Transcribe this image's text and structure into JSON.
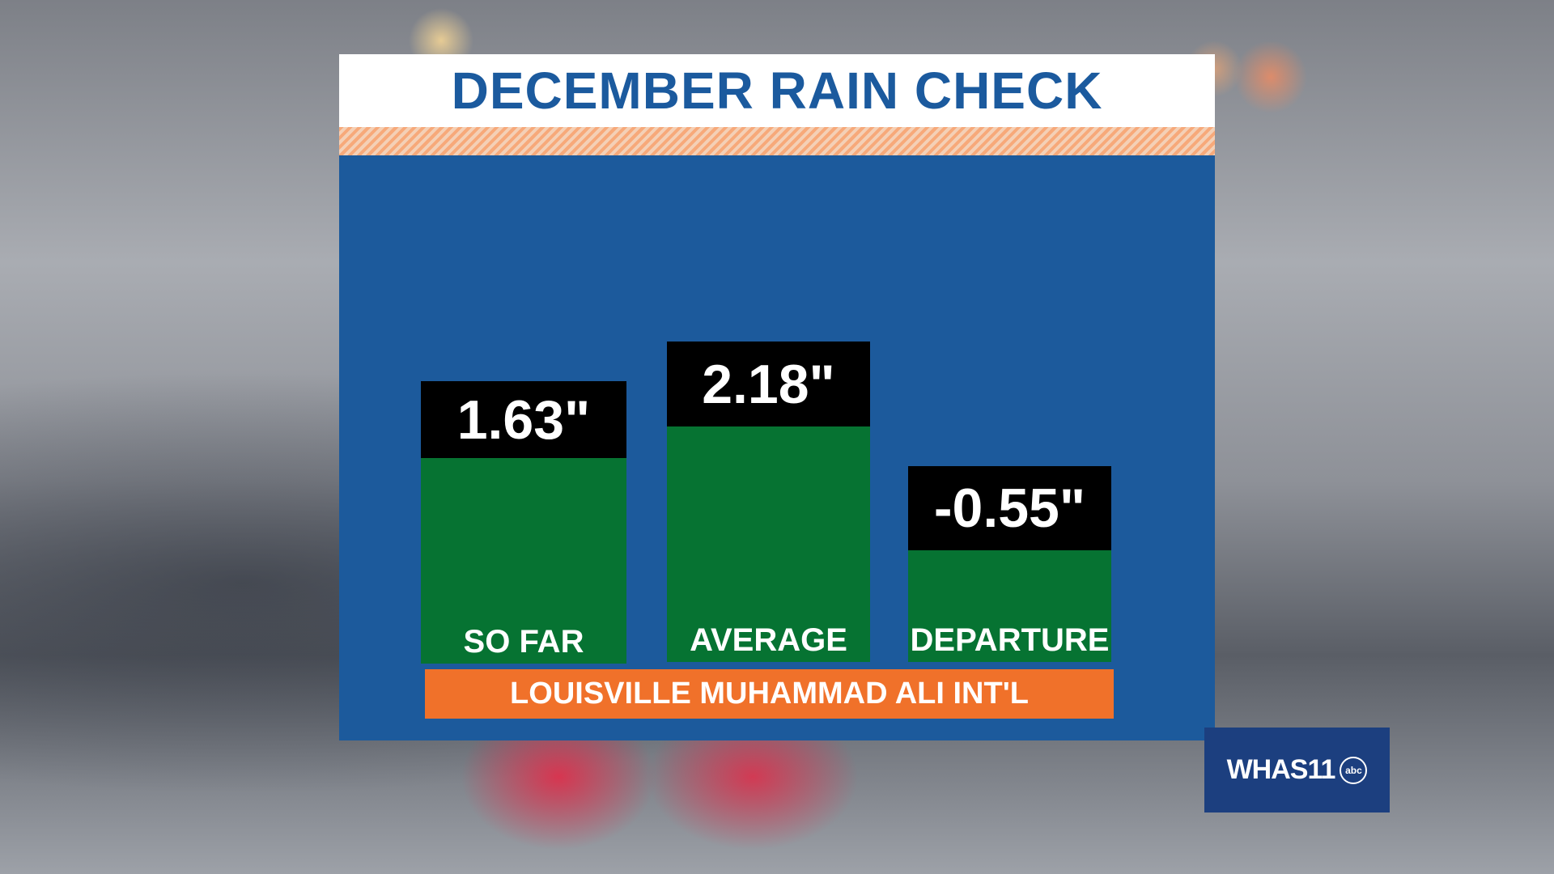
{
  "title": "DECEMBER RAIN CHECK",
  "bars": [
    {
      "value": "1.63\"",
      "label": "SO FAR"
    },
    {
      "value": "2.18\"",
      "label": "AVERAGE"
    },
    {
      "value": "-0.55\"",
      "label": "DEPARTURE"
    }
  ],
  "location": "LOUISVILLE MUHAMMAD ALI INT'L",
  "logo": {
    "name": "WHAS11",
    "network": "abc"
  }
}
